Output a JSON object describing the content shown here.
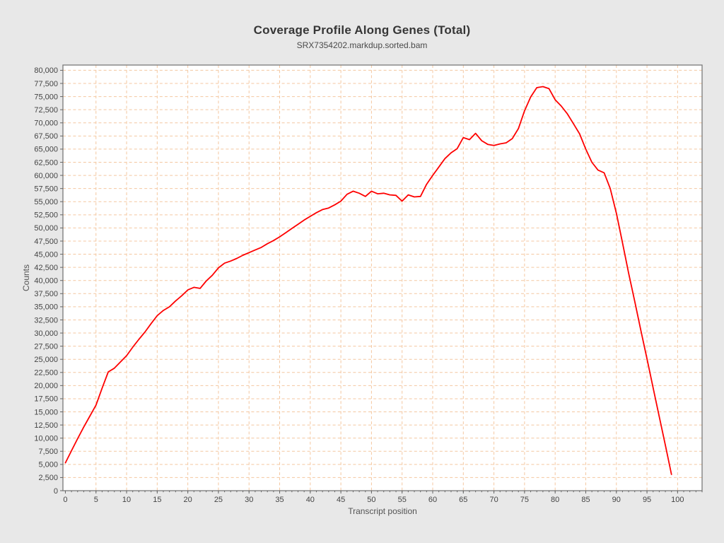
{
  "window": {
    "background_color": "#e8e8e8"
  },
  "chart_data": {
    "type": "line",
    "title": "Coverage Profile Along Genes (Total)",
    "subtitle": "SRX7354202.markdup.sorted.bam",
    "xlabel": "Transcript position",
    "ylabel": "Counts",
    "xlim": [
      -0.4,
      104
    ],
    "ylim": [
      0,
      81000
    ],
    "x_major_ticks": [
      0,
      5,
      10,
      15,
      20,
      25,
      30,
      35,
      40,
      45,
      50,
      55,
      60,
      65,
      70,
      75,
      80,
      85,
      90,
      95,
      100
    ],
    "x_minor_tick_step": 1,
    "y_tick_step": 2500,
    "y_tick_max": 80000,
    "grid": true,
    "legend": "none",
    "colors": {
      "plot_background": "#ffffff",
      "gridline": "#f4c7a0",
      "plot_border": "#787878",
      "tick": "#666666",
      "tick_label": "#444444",
      "line": "#fe0000"
    },
    "series": [
      {
        "name": "SRX7354202.markdup.sorted.bam",
        "color": "#fe0000",
        "x": [
          0,
          1,
          2,
          3,
          4,
          5,
          6,
          7,
          8,
          9,
          10,
          11,
          12,
          13,
          14,
          15,
          16,
          17,
          18,
          19,
          20,
          21,
          22,
          23,
          24,
          25,
          26,
          27,
          28,
          29,
          30,
          31,
          32,
          33,
          34,
          35,
          36,
          37,
          38,
          39,
          40,
          41,
          42,
          43,
          44,
          45,
          46,
          47,
          48,
          49,
          50,
          51,
          52,
          53,
          54,
          55,
          56,
          57,
          58,
          59,
          60,
          61,
          62,
          63,
          64,
          65,
          66,
          67,
          68,
          69,
          70,
          71,
          72,
          73,
          74,
          75,
          76,
          77,
          78,
          79,
          80,
          81,
          82,
          83,
          84,
          85,
          86,
          87,
          88,
          89,
          90,
          91,
          92,
          93,
          94,
          95,
          96,
          97,
          98,
          99
        ],
        "y": [
          5300,
          7600,
          9900,
          12100,
          14200,
          16300,
          19500,
          22600,
          23300,
          24500,
          25700,
          27300,
          28800,
          30200,
          31800,
          33300,
          34300,
          35000,
          36100,
          37100,
          38200,
          38700,
          38500,
          39900,
          41000,
          42400,
          43300,
          43700,
          44200,
          44800,
          45300,
          45800,
          46300,
          47000,
          47600,
          48300,
          49100,
          49900,
          50700,
          51500,
          52200,
          52900,
          53500,
          53800,
          54400,
          55100,
          56400,
          57000,
          56600,
          56000,
          57000,
          56500,
          56600,
          56300,
          56200,
          55100,
          56300,
          55900,
          56000,
          58300,
          60000,
          61600,
          63200,
          64300,
          65100,
          67200,
          66800,
          68000,
          66600,
          65900,
          65700,
          66000,
          66200,
          67000,
          68900,
          72300,
          74900,
          76700,
          76900,
          76500,
          74400,
          73200,
          71700,
          69800,
          67900,
          65000,
          62500,
          61000,
          60500,
          57500,
          52800,
          47200,
          41400,
          36000,
          30500,
          25100,
          19600,
          14100,
          8700,
          3100
        ]
      }
    ]
  }
}
